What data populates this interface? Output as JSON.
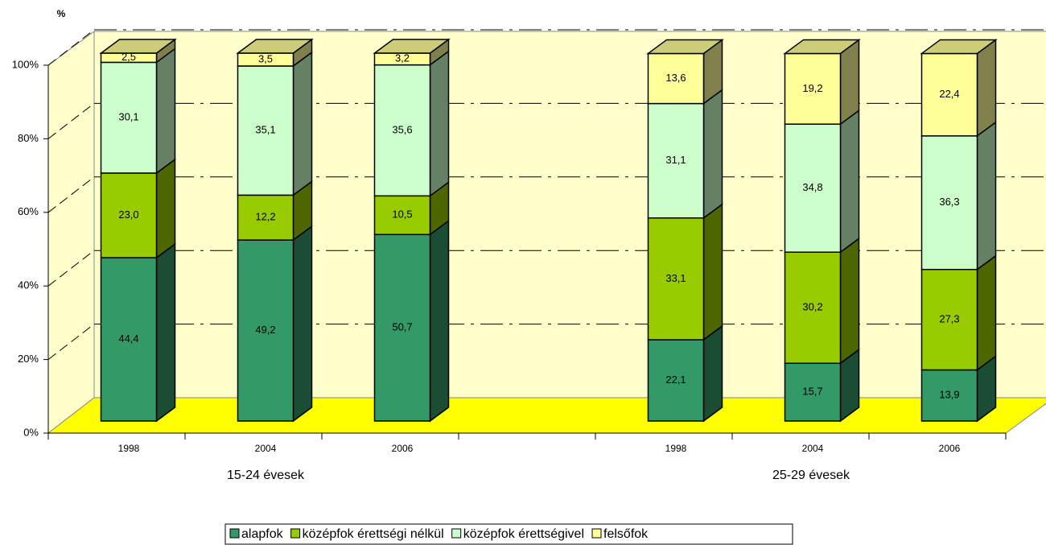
{
  "chart_data": {
    "type": "bar3d_stacked",
    "y_label": "%",
    "categories": [
      "1998",
      "2004",
      "2006",
      null,
      "1998",
      "2004",
      "2006"
    ],
    "group_labels": [
      "15-24 évesek",
      "25-29 évesek"
    ],
    "series": [
      {
        "name": "alapfok",
        "color": "#339966",
        "values": [
          44.4,
          49.2,
          50.7,
          null,
          22.1,
          15.7,
          13.9
        ],
        "value_labels": [
          "44,4",
          "49,2",
          "50,7",
          null,
          "22,1",
          "15,7",
          "13,9"
        ]
      },
      {
        "name": "középfok érettségi nélkül",
        "color": "#99cc00",
        "values": [
          23.0,
          12.2,
          10.5,
          null,
          33.1,
          30.2,
          27.3
        ],
        "value_labels": [
          "23,0",
          "12,2",
          "10,5",
          null,
          "33,1",
          "30,2",
          "27,3"
        ]
      },
      {
        "name": "középfok érettségivel",
        "color": "#ccffcc",
        "values": [
          30.1,
          35.1,
          35.6,
          null,
          31.1,
          34.8,
          36.3
        ],
        "value_labels": [
          "30,1",
          "35,1",
          "35,6",
          null,
          "31,1",
          "34,8",
          "36,3"
        ]
      },
      {
        "name": "felsőfok",
        "color": "#ffff99",
        "values": [
          2.5,
          3.5,
          3.2,
          null,
          13.6,
          19.2,
          22.4
        ],
        "value_labels": [
          "2,5",
          "3,5",
          "3,2",
          null,
          "13,6",
          "19,2",
          "22,4"
        ]
      }
    ],
    "ylim": [
      0,
      100
    ],
    "yticks": [
      {
        "value": 0,
        "label": "0%"
      },
      {
        "value": 20,
        "label": "20%"
      },
      {
        "value": 40,
        "label": "40%"
      },
      {
        "value": 60,
        "label": "60%"
      },
      {
        "value": 80,
        "label": "80%"
      },
      {
        "value": 100,
        "label": "100%"
      }
    ],
    "grid": true,
    "legend": "bottom"
  }
}
